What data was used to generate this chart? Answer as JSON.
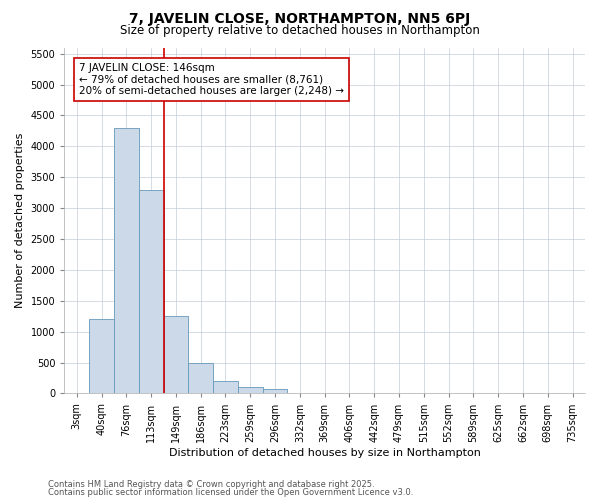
{
  "title_line1": "7, JAVELIN CLOSE, NORTHAMPTON, NN5 6PJ",
  "title_line2": "Size of property relative to detached houses in Northampton",
  "xlabel": "Distribution of detached houses by size in Northampton",
  "ylabel": "Number of detached properties",
  "categories": [
    "3sqm",
    "40sqm",
    "76sqm",
    "113sqm",
    "149sqm",
    "186sqm",
    "223sqm",
    "259sqm",
    "296sqm",
    "332sqm",
    "369sqm",
    "406sqm",
    "442sqm",
    "479sqm",
    "515sqm",
    "552sqm",
    "589sqm",
    "625sqm",
    "662sqm",
    "698sqm",
    "735sqm"
  ],
  "values": [
    0,
    1200,
    4300,
    3300,
    1250,
    500,
    200,
    100,
    70,
    0,
    0,
    0,
    0,
    0,
    0,
    0,
    0,
    0,
    0,
    0,
    0
  ],
  "bar_color": "#ccd9e8",
  "bar_edge_color": "#6699bb",
  "vline_x_index": 3.5,
  "vline_color": "#cc0000",
  "annotation_text": "7 JAVELIN CLOSE: 146sqm\n← 79% of detached houses are smaller (8,761)\n20% of semi-detached houses are larger (2,248) →",
  "annotation_box_color": "#ffffff",
  "annotation_box_edge": "#cc0000",
  "ylim": [
    0,
    5600
  ],
  "yticks": [
    0,
    500,
    1000,
    1500,
    2000,
    2500,
    3000,
    3500,
    4000,
    4500,
    5000,
    5500
  ],
  "footer_line1": "Contains HM Land Registry data © Crown copyright and database right 2025.",
  "footer_line2": "Contains public sector information licensed under the Open Government Licence v3.0.",
  "bg_color": "#ffffff",
  "grid_color": "#c5cdd8",
  "title_fontsize": 10,
  "subtitle_fontsize": 8.5,
  "axis_label_fontsize": 8,
  "tick_fontsize": 7,
  "annotation_fontsize": 7.5,
  "footer_fontsize": 6
}
